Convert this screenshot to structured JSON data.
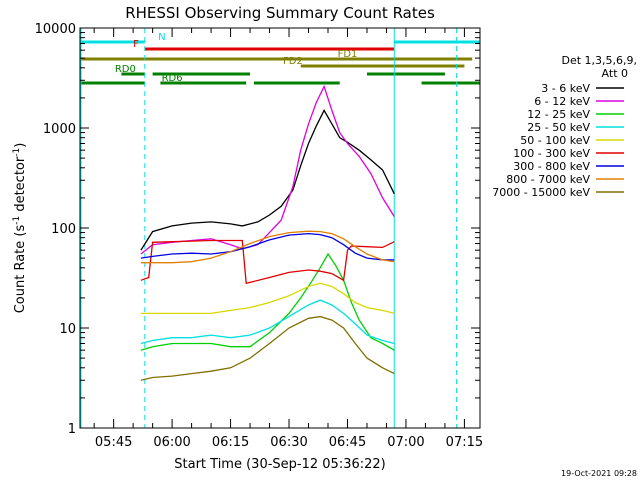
{
  "chart_data": {
    "type": "line",
    "title": "RHESSI Observing Summary Count Rates",
    "xlabel": "Start Time (30-Sep-12 05:36:22)",
    "ylabel": "Count Rate (s⁻¹ detector⁻¹)",
    "ylabel_main": "Count Rate (s",
    "ylabel_sup1": "-1",
    "ylabel_mid": " detector",
    "ylabel_sup2": "-1",
    "ylabel_end": ")",
    "y_scale": "log",
    "ylim": [
      1,
      10000
    ],
    "xlim": [
      "05:36:22",
      "07:19:00"
    ],
    "x_ticks": [
      "05:45",
      "06:00",
      "06:15",
      "06:30",
      "06:45",
      "07:00",
      "07:15"
    ],
    "y_ticks": [
      "1",
      "10",
      "100",
      "1000",
      "10000"
    ],
    "legend_header": [
      "Det 1,3,5,6,9,",
      "Att 0"
    ],
    "legend_position": "right",
    "timestamp": "19-Oct-2021 09:28",
    "series": [
      {
        "name": "3 - 6 keV",
        "color": "#000000",
        "x": [
          "05:52",
          "05:55",
          "06:00",
          "06:05",
          "06:10",
          "06:15",
          "06:18",
          "06:22",
          "06:25",
          "06:28",
          "06:31",
          "06:33",
          "06:35",
          "06:37",
          "06:39",
          "06:41",
          "06:43",
          "06:45",
          "06:48",
          "06:51",
          "06:54",
          "06:57"
        ],
        "y": [
          60,
          92,
          105,
          112,
          115,
          110,
          105,
          115,
          135,
          165,
          240,
          420,
          700,
          1050,
          1500,
          1100,
          800,
          720,
          600,
          480,
          380,
          220
        ]
      },
      {
        "name": "6 - 12 keV",
        "color": "#e000e0",
        "x": [
          "05:52",
          "05:55",
          "06:00",
          "06:05",
          "06:10",
          "06:15",
          "06:18",
          "06:22",
          "06:25",
          "06:28",
          "06:31",
          "06:33",
          "06:35",
          "06:37",
          "06:39",
          "06:41",
          "06:43",
          "06:45",
          "06:48",
          "06:51",
          "06:54",
          "06:57"
        ],
        "y": [
          55,
          68,
          72,
          75,
          78,
          68,
          62,
          68,
          90,
          120,
          260,
          600,
          1100,
          1800,
          2600,
          1500,
          900,
          700,
          520,
          350,
          200,
          130
        ]
      },
      {
        "name": "12 - 25 keV",
        "color": "#00d000",
        "x": [
          "05:52",
          "05:55",
          "06:00",
          "06:05",
          "06:10",
          "06:15",
          "06:20",
          "06:25",
          "06:30",
          "06:33",
          "06:36",
          "06:38",
          "06:40",
          "06:42",
          "06:44",
          "06:46",
          "06:48",
          "06:51",
          "06:54",
          "06:57"
        ],
        "y": [
          6,
          6.5,
          7,
          7,
          7,
          6.5,
          6.5,
          9,
          14,
          20,
          30,
          40,
          55,
          42,
          30,
          18,
          12,
          8,
          7,
          6
        ]
      },
      {
        "name": "25 - 50 keV",
        "color": "#00e0e0",
        "x": [
          "05:52",
          "05:55",
          "06:00",
          "06:05",
          "06:10",
          "06:15",
          "06:20",
          "06:25",
          "06:30",
          "06:35",
          "06:38",
          "06:41",
          "06:44",
          "06:47",
          "06:50",
          "06:54",
          "06:57"
        ],
        "y": [
          7,
          7.5,
          8,
          8,
          8.5,
          8,
          8.5,
          10,
          13,
          17,
          19,
          17,
          14,
          11,
          8.5,
          7.5,
          7
        ]
      },
      {
        "name": "50 - 100 keV",
        "color": "#d8d800",
        "x": [
          "05:52",
          "05:55",
          "06:00",
          "06:05",
          "06:10",
          "06:15",
          "06:20",
          "06:25",
          "06:30",
          "06:35",
          "06:38",
          "06:41",
          "06:44",
          "06:47",
          "06:50",
          "06:54",
          "06:57"
        ],
        "y": [
          14,
          14,
          14,
          14,
          14,
          15,
          16,
          18,
          21,
          26,
          28,
          26,
          22,
          18,
          16,
          15,
          14
        ]
      },
      {
        "name": "100 - 300 keV",
        "color": "#e00000",
        "x": [
          "05:52",
          "05:54",
          "05:55",
          "06:00",
          "06:05",
          "06:10",
          "06:15",
          "06:18",
          "06:19",
          "06:25",
          "06:30",
          "06:35",
          "06:38",
          "06:41",
          "06:44",
          "06:45",
          "06:46",
          "06:50",
          "06:54",
          "06:57"
        ],
        "y": [
          30,
          32,
          72,
          73,
          74,
          75,
          75,
          75,
          28,
          32,
          36,
          38,
          37,
          35,
          30,
          60,
          66,
          65,
          64,
          73
        ]
      },
      {
        "name": "300 - 800 keV",
        "color": "#0000e0",
        "x": [
          "05:52",
          "05:55",
          "06:00",
          "06:05",
          "06:10",
          "06:15",
          "06:20",
          "06:25",
          "06:30",
          "06:35",
          "06:38",
          "06:41",
          "06:44",
          "06:47",
          "06:50",
          "06:54",
          "06:57"
        ],
        "y": [
          50,
          52,
          55,
          56,
          55,
          58,
          65,
          76,
          85,
          88,
          86,
          80,
          68,
          56,
          50,
          48,
          48
        ]
      },
      {
        "name": "800 - 7000 keV",
        "color": "#e08000",
        "x": [
          "05:52",
          "05:55",
          "06:00",
          "06:05",
          "06:10",
          "06:15",
          "06:20",
          "06:25",
          "06:30",
          "06:35",
          "06:38",
          "06:41",
          "06:44",
          "06:47",
          "06:50",
          "06:54",
          "06:57"
        ],
        "y": [
          45,
          45,
          45,
          46,
          50,
          58,
          70,
          82,
          90,
          93,
          92,
          88,
          78,
          65,
          55,
          48,
          46
        ]
      },
      {
        "name": "7000 - 15000 keV",
        "color": "#807000",
        "x": [
          "05:52",
          "05:55",
          "06:00",
          "06:05",
          "06:10",
          "06:15",
          "06:20",
          "06:25",
          "06:30",
          "06:35",
          "06:38",
          "06:41",
          "06:44",
          "06:47",
          "06:50",
          "06:54",
          "06:57"
        ],
        "y": [
          3,
          3.2,
          3.3,
          3.5,
          3.7,
          4,
          5,
          7,
          10,
          12.5,
          13,
          12,
          10,
          7,
          5,
          4,
          3.5
        ]
      }
    ],
    "status_bars": [
      {
        "label": "N",
        "color": "#00e0e0",
        "segments": [
          [
            "05:36:22",
            "05:53"
          ],
          [
            "06:57",
            "07:19"
          ]
        ]
      },
      {
        "label": "F",
        "color": "#e00000",
        "segments": [
          [
            "05:53",
            "06:57"
          ]
        ]
      },
      {
        "label": "FD1",
        "color": "#808000",
        "segments": [
          [
            "05:36:22",
            "07:17"
          ]
        ]
      },
      {
        "label": "FD2",
        "color": "#808000",
        "segments": [
          [
            "06:33",
            "07:15"
          ]
        ]
      },
      {
        "label": "RD0",
        "color": "#008000",
        "segments": [
          [
            "05:47",
            "05:53"
          ],
          [
            "05:55",
            "06:20"
          ],
          [
            "06:50",
            "07:10"
          ]
        ]
      },
      {
        "label": "RD6",
        "color": "#008000",
        "segments": [
          [
            "05:36:22",
            "05:53"
          ],
          [
            "05:57",
            "06:19"
          ],
          [
            "06:21",
            "06:43"
          ],
          [
            "07:04",
            "07:19"
          ]
        ]
      }
    ],
    "vertical_lines": [
      {
        "color": "#00e0e0",
        "style": "dashed",
        "x": "05:53"
      },
      {
        "color": "#00e0e0",
        "style": "solid",
        "x": "06:57"
      },
      {
        "color": "#00e0e0",
        "style": "dashed",
        "x": "07:13"
      }
    ]
  }
}
